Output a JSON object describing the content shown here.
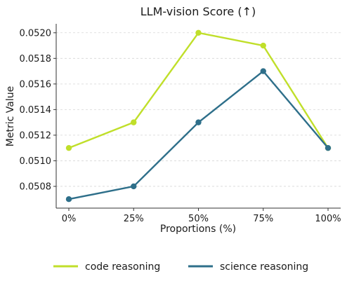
{
  "chart_data": {
    "type": "line",
    "title": "LLM-vision Score (↑)",
    "xlabel": "Proportions (%)",
    "ylabel": "Metric Value",
    "categories": [
      "0%",
      "25%",
      "50%",
      "75%",
      "100%"
    ],
    "ylim": [
      0.05063,
      0.05207
    ],
    "yticks": [
      "0.0508",
      "0.0510",
      "0.0512",
      "0.0514",
      "0.0516",
      "0.0518",
      "0.0520"
    ],
    "grid": "horizontal dashed",
    "legend_position": "bottom",
    "series": [
      {
        "name": "code reasoning",
        "color": "#c0df2a",
        "values": [
          0.0511,
          0.0513,
          0.052,
          0.0519,
          0.0511
        ]
      },
      {
        "name": "science reasoning",
        "color": "#2e6f8a",
        "values": [
          0.0507,
          0.0508,
          0.0513,
          0.0517,
          0.0511
        ]
      }
    ]
  }
}
